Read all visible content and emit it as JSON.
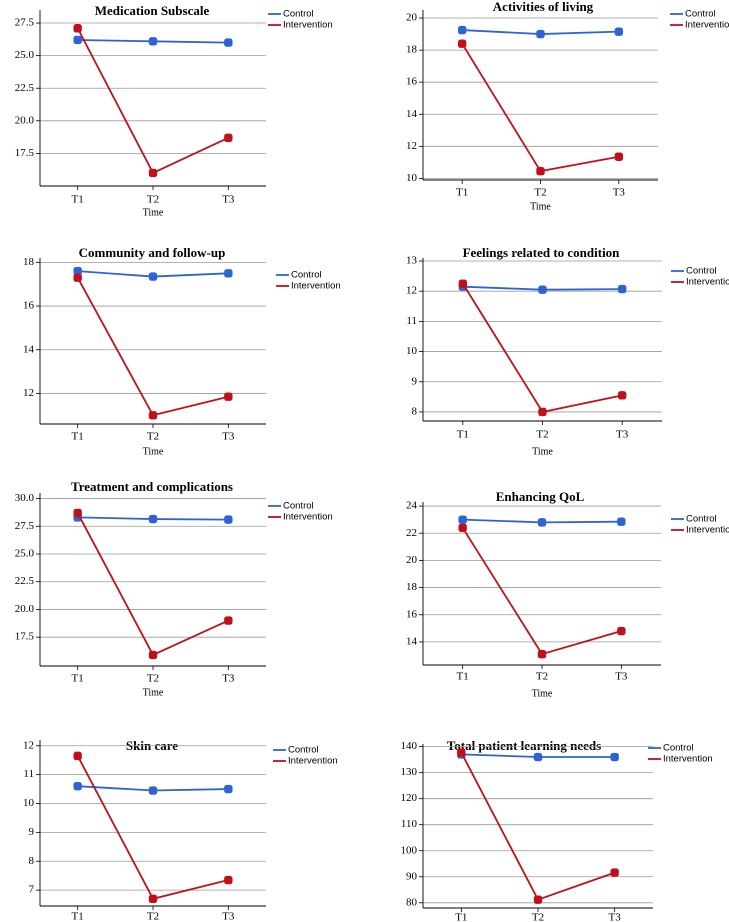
{
  "colors": {
    "control": "#2e63d3",
    "intervention": "#c0111b",
    "grid": "#9a9a9a",
    "axis": "#000000"
  },
  "chart_data": [
    {
      "type": "line",
      "title": "Medication Subscale",
      "categories": [
        "T1",
        "T2",
        "T3"
      ],
      "xlabel": "Time",
      "ylabel": "",
      "ylim": [
        15.0,
        28.5
      ],
      "yticks": [
        17.5,
        20.0,
        22.5,
        25.0,
        27.5
      ],
      "ytick_labels": [
        "17.5",
        "20.0",
        "22.5",
        "25.0",
        "27.5"
      ],
      "legend": [
        "Control",
        "Intervention"
      ],
      "series": [
        {
          "name": "Control",
          "values": [
            26.2,
            26.1,
            26.0
          ]
        },
        {
          "name": "Intervention",
          "values": [
            27.1,
            16.0,
            18.7
          ]
        }
      ]
    },
    {
      "type": "line",
      "title": "Activities of living",
      "categories": [
        "T1",
        "T2",
        "T3"
      ],
      "xlabel": "Time",
      "ylabel": "",
      "ylim": [
        9.9,
        20.5
      ],
      "yticks": [
        10,
        12,
        14,
        16,
        18,
        20
      ],
      "ytick_labels": [
        "10",
        "12",
        "14",
        "16",
        "18",
        "20"
      ],
      "legend": [
        "Control",
        "Intervention"
      ],
      "series": [
        {
          "name": "Control",
          "values": [
            19.25,
            19.0,
            19.15
          ]
        },
        {
          "name": "Intervention",
          "values": [
            18.4,
            10.45,
            11.35
          ]
        }
      ]
    },
    {
      "type": "line",
      "title": "Community and follow-up",
      "categories": [
        "T1",
        "T2",
        "T3"
      ],
      "xlabel": "Time",
      "ylabel": "",
      "ylim": [
        10.6,
        18.2
      ],
      "yticks": [
        12,
        14,
        16,
        18
      ],
      "ytick_labels": [
        "12",
        "14",
        "16",
        "18"
      ],
      "legend": [
        "Control",
        "Intervention"
      ],
      "series": [
        {
          "name": "Control",
          "values": [
            17.6,
            17.35,
            17.5
          ]
        },
        {
          "name": "Intervention",
          "values": [
            17.3,
            11.0,
            11.85
          ]
        }
      ]
    },
    {
      "type": "line",
      "title": "Feelings related to condition",
      "categories": [
        "T1",
        "T2",
        "T3"
      ],
      "xlabel": "Time",
      "ylabel": "",
      "ylim": [
        7.7,
        13.1
      ],
      "yticks": [
        8,
        9,
        10,
        11,
        12,
        13
      ],
      "ytick_labels": [
        "8",
        "9",
        "10",
        "11",
        "12",
        "13"
      ],
      "legend": [
        "Control",
        "Intervention"
      ],
      "series": [
        {
          "name": "Control",
          "values": [
            12.15,
            12.05,
            12.07
          ]
        },
        {
          "name": "Intervention",
          "values": [
            12.25,
            8.0,
            8.55
          ]
        }
      ]
    },
    {
      "type": "line",
      "title": "Treatment and complications",
      "categories": [
        "T1",
        "T2",
        "T3"
      ],
      "xlabel": "Time",
      "ylabel": "",
      "ylim": [
        14.9,
        30.5
      ],
      "yticks": [
        17.5,
        20.0,
        22.5,
        25.0,
        27.5,
        30.0
      ],
      "ytick_labels": [
        "17.5",
        "20.0",
        "22.5",
        "25.0",
        "27.5",
        "30.0"
      ],
      "legend": [
        "Control",
        "Intervention"
      ],
      "series": [
        {
          "name": "Control",
          "values": [
            28.3,
            28.15,
            28.1
          ]
        },
        {
          "name": "Intervention",
          "values": [
            28.7,
            15.9,
            19.0
          ]
        }
      ]
    },
    {
      "type": "line",
      "title": "Enhancing QoL",
      "categories": [
        "T1",
        "T2",
        "T3"
      ],
      "xlabel": "Time",
      "ylabel": "",
      "ylim": [
        12.3,
        24.3
      ],
      "yticks": [
        14,
        16,
        18,
        20,
        22,
        24
      ],
      "ytick_labels": [
        "14",
        "16",
        "18",
        "20",
        "22",
        "24"
      ],
      "legend": [
        "Control",
        "Intervention"
      ],
      "series": [
        {
          "name": "Control",
          "values": [
            23.0,
            22.8,
            22.85
          ]
        },
        {
          "name": "Intervention",
          "values": [
            22.4,
            13.1,
            14.8
          ]
        }
      ]
    },
    {
      "type": "line",
      "title": "Skin care",
      "categories": [
        "T1",
        "T2",
        "T3"
      ],
      "xlabel": "",
      "ylabel": "",
      "ylim": [
        6.45,
        12.2
      ],
      "yticks": [
        7,
        8,
        9,
        10,
        11,
        12
      ],
      "ytick_labels": [
        "7",
        "8",
        "9",
        "10",
        "11",
        "12"
      ],
      "legend": [
        "Control",
        "Intervention"
      ],
      "series": [
        {
          "name": "Control",
          "values": [
            10.6,
            10.45,
            10.5
          ]
        },
        {
          "name": "Intervention",
          "values": [
            11.65,
            6.7,
            7.35
          ]
        }
      ]
    },
    {
      "type": "line",
      "title": "Total patient learning needs",
      "categories": [
        "T1",
        "T2",
        "T3"
      ],
      "xlabel": "",
      "ylabel": "",
      "ylim": [
        78,
        141
      ],
      "yticks": [
        80,
        90,
        100,
        110,
        120,
        130,
        140
      ],
      "ytick_labels": [
        "80",
        "90",
        "100",
        "110",
        "120",
        "130",
        "140"
      ],
      "legend": [
        "Control",
        "Intervention"
      ],
      "series": [
        {
          "name": "Control",
          "values": [
            137,
            136,
            136
          ]
        },
        {
          "name": "Intervention",
          "values": [
            137.7,
            81.2,
            91.6
          ]
        }
      ]
    }
  ]
}
